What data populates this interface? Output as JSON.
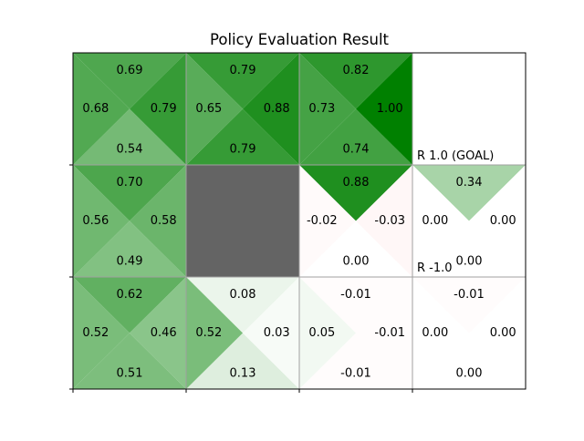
{
  "chart_data": {
    "type": "heatmap",
    "title": "Policy Evaluation Result",
    "rows": 3,
    "cols": 4,
    "color_scale": {
      "positive": "#008000",
      "negative": "#ff0000",
      "neutral": "#ffffff",
      "wall": "#646464",
      "max_abs": 1.0
    },
    "cells": [
      {
        "row": 0,
        "col": 0,
        "kind": "state",
        "values": {
          "up": 0.69,
          "left": 0.68,
          "right": 0.79,
          "down": 0.54
        },
        "labels": {
          "up": "0.69",
          "left": "0.68",
          "right": "0.79",
          "down": "0.54"
        }
      },
      {
        "row": 0,
        "col": 1,
        "kind": "state",
        "values": {
          "up": 0.79,
          "left": 0.65,
          "right": 0.88,
          "down": 0.79
        },
        "labels": {
          "up": "0.79",
          "left": "0.65",
          "right": "0.88",
          "down": "0.79"
        }
      },
      {
        "row": 0,
        "col": 2,
        "kind": "state",
        "values": {
          "up": 0.82,
          "left": 0.73,
          "right": 1.0,
          "down": 0.74
        },
        "labels": {
          "up": "0.82",
          "left": "0.73",
          "right": "1.00",
          "down": "0.74"
        }
      },
      {
        "row": 0,
        "col": 3,
        "kind": "terminal"
      },
      {
        "row": 1,
        "col": 0,
        "kind": "state",
        "values": {
          "up": 0.7,
          "left": 0.56,
          "right": 0.58,
          "down": 0.49
        },
        "labels": {
          "up": "0.70",
          "left": "0.56",
          "right": "0.58",
          "down": "0.49"
        }
      },
      {
        "row": 1,
        "col": 1,
        "kind": "wall"
      },
      {
        "row": 1,
        "col": 2,
        "kind": "state",
        "values": {
          "up": 0.88,
          "left": -0.02,
          "right": -0.03,
          "down": 0.0
        },
        "labels": {
          "up": "0.88",
          "left": "-0.02",
          "right": "-0.03",
          "down": "0.00"
        }
      },
      {
        "row": 1,
        "col": 3,
        "kind": "state",
        "values": {
          "up": 0.34,
          "left": 0.0,
          "right": 0.0,
          "down": 0.0
        },
        "labels": {
          "up": "0.34",
          "left": "0.00",
          "right": "0.00",
          "down": "0.00"
        }
      },
      {
        "row": 2,
        "col": 0,
        "kind": "state",
        "values": {
          "up": 0.62,
          "left": 0.52,
          "right": 0.46,
          "down": 0.51
        },
        "labels": {
          "up": "0.62",
          "left": "0.52",
          "right": "0.46",
          "down": "0.51"
        }
      },
      {
        "row": 2,
        "col": 1,
        "kind": "state",
        "values": {
          "up": 0.08,
          "left": 0.52,
          "right": 0.03,
          "down": 0.13
        },
        "labels": {
          "up": "0.08",
          "left": "0.52",
          "right": "0.03",
          "down": "0.13"
        }
      },
      {
        "row": 2,
        "col": 2,
        "kind": "state",
        "values": {
          "up": -0.01,
          "left": 0.05,
          "right": -0.01,
          "down": -0.01
        },
        "labels": {
          "up": "-0.01",
          "left": "0.05",
          "right": "-0.01",
          "down": "-0.01"
        }
      },
      {
        "row": 2,
        "col": 3,
        "kind": "state",
        "values": {
          "up": -0.01,
          "left": 0.0,
          "right": 0.0,
          "down": 0.0
        },
        "labels": {
          "up": "-0.01",
          "left": "0.00",
          "right": "0.00",
          "down": "0.00"
        }
      }
    ],
    "reward_labels": [
      {
        "row": 0,
        "col": 3,
        "text": "R 1.0 (GOAL)"
      },
      {
        "row": 1,
        "col": 3,
        "text": "R -1.0"
      }
    ],
    "x_ticks": 4,
    "y_ticks": 3,
    "tick_labels": []
  }
}
